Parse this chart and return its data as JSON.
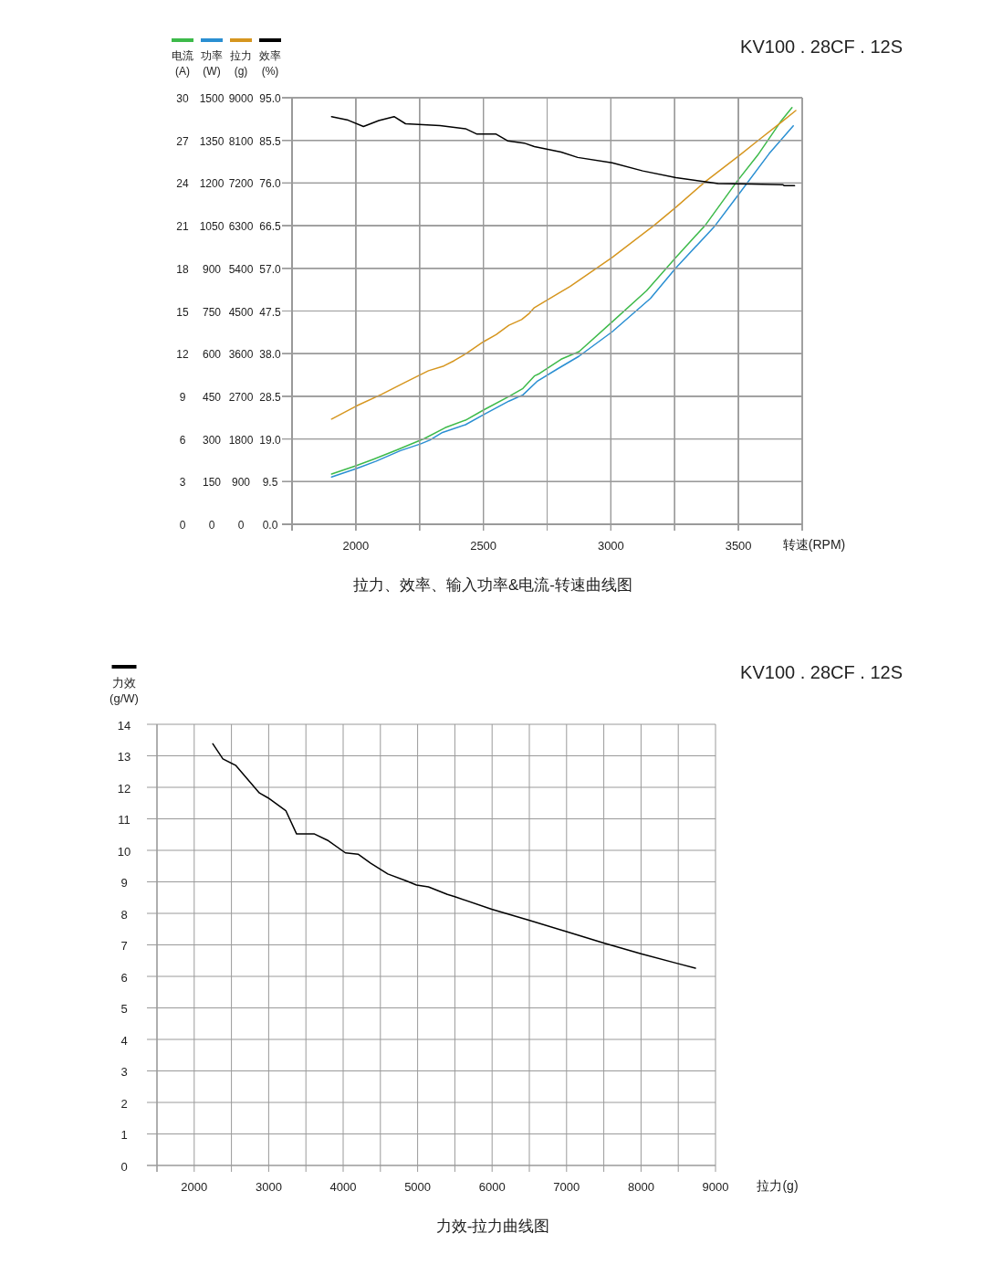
{
  "chart_data": [
    {
      "type": "line",
      "title": "拉力、效率、输入功率&电流-转速曲线图",
      "annotations": [
        "KV100 . 28CF . 12S"
      ],
      "xlabel": "转速(RPM)",
      "xlim": [
        1750,
        3750
      ],
      "xticks": [
        {
          "value": 1750,
          "label": null
        },
        2000,
        {
          "value": 2250,
          "label": null
        },
        2500,
        {
          "value": 2750,
          "label": null
        },
        3000,
        {
          "value": 3250,
          "label": null
        },
        3500,
        {
          "value": 3750,
          "label": null
        }
      ],
      "ylabel": "(A)",
      "ylim": [
        0,
        30
      ],
      "yticks": [
        0,
        3,
        6,
        9,
        12,
        15,
        18,
        21,
        24,
        27,
        30
      ],
      "grid": true,
      "legend": "top left",
      "series": [
        {
          "name": "电流",
          "color": "#3dba4a",
          "x": [
            1905,
            2000,
            2070,
            2160,
            2270,
            2350,
            2430,
            2500,
            2600,
            2655,
            2700,
            2720,
            2805,
            2875,
            3005,
            3140,
            3255,
            3370,
            3495,
            3575,
            3665,
            3710
          ],
          "values": [
            3.53,
            4.11,
            4.58,
            5.22,
            6.04,
            6.79,
            7.32,
            8.03,
            8.99,
            9.55,
            10.43,
            10.6,
            11.61,
            12.14,
            14.24,
            16.43,
            18.78,
            21.03,
            24.13,
            25.95,
            28.31,
            29.31
          ]
        }
      ]
    },
    {
      "type": "line",
      "tick_labels": "y",
      "xlim": [
        1750,
        3750
      ],
      "xticks": [
        {
          "value": 1750,
          "label": null
        },
        2000,
        {
          "value": 2250,
          "label": null
        },
        2500,
        {
          "value": 2750,
          "label": null
        },
        3000,
        {
          "value": 3250,
          "label": null
        },
        3500,
        {
          "value": 3750,
          "label": null
        }
      ],
      "ylabel": "(W)",
      "ylim": [
        0,
        1500
      ],
      "yticks": [
        0,
        150,
        300,
        450,
        600,
        750,
        900,
        1050,
        1200,
        1350,
        1500
      ],
      "grid": true,
      "legend": "top left",
      "series": [
        {
          "name": "功率",
          "color": "#2a8fd2",
          "x": [
            1905,
            2000,
            2080,
            2175,
            2255,
            2290,
            2340,
            2430,
            2500,
            2600,
            2655,
            2710,
            2790,
            2875,
            3005,
            3155,
            3255,
            3405,
            3495,
            3620,
            3715
          ],
          "values": [
            166,
            195,
            222,
            259,
            283,
            296,
            323,
            350,
            385,
            433,
            455,
            502,
            546,
            591,
            677,
            794,
            902,
            1046,
            1153,
            1303,
            1401
          ]
        }
      ]
    },
    {
      "type": "line",
      "tick_labels": "y",
      "xlim": [
        1750,
        3750
      ],
      "xticks": [
        {
          "value": 1750,
          "label": null
        },
        2000,
        {
          "value": 2250,
          "label": null
        },
        2500,
        {
          "value": 2750,
          "label": null
        },
        3000,
        {
          "value": 3250,
          "label": null
        },
        3500,
        {
          "value": 3750,
          "label": null
        }
      ],
      "ylabel": "(g)",
      "ylim": [
        0,
        9000
      ],
      "yticks": [
        0,
        900,
        1800,
        2700,
        3600,
        4500,
        5400,
        6300,
        7200,
        8100,
        9000
      ],
      "grid": true,
      "legend": "top left",
      "series": [
        {
          "name": "拉力",
          "color": "#d6961f",
          "x": [
            1905,
            2000,
            2100,
            2195,
            2285,
            2345,
            2385,
            2435,
            2500,
            2550,
            2600,
            2650,
            2680,
            2700,
            2790,
            2840,
            3005,
            3170,
            3255,
            3370,
            3505,
            3575,
            3670,
            3725
          ],
          "values": [
            2220,
            2490,
            2740,
            3000,
            3240,
            3340,
            3450,
            3610,
            3850,
            4000,
            4200,
            4320,
            4450,
            4570,
            4860,
            5020,
            5630,
            6310,
            6690,
            7230,
            7790,
            8090,
            8490,
            8730
          ]
        }
      ]
    },
    {
      "type": "line",
      "tick_labels": "y",
      "xlim": [
        1750,
        3750
      ],
      "xticks": [
        {
          "value": 1750,
          "label": null
        },
        2000,
        {
          "value": 2250,
          "label": null
        },
        2500,
        {
          "value": 2750,
          "label": null
        },
        3000,
        {
          "value": 3250,
          "label": null
        },
        3500,
        {
          "value": 3750,
          "label": null
        }
      ],
      "ylabel": "(%)",
      "ylim": [
        0,
        95
      ],
      "yticks": [
        {
          "value": 0,
          "label": "0.0"
        },
        9.5,
        {
          "value": 19,
          "label": "19.0"
        },
        28.5,
        {
          "value": 38,
          "label": "38.0"
        },
        47.5,
        {
          "value": 57,
          "label": "57.0"
        },
        66.5,
        {
          "value": 76,
          "label": "76.0"
        },
        85.5,
        {
          "value": 95,
          "label": "95.0"
        }
      ],
      "grid": true,
      "legend": "top left",
      "series": [
        {
          "name": "效率",
          "color": "#000000",
          "x": [
            1905,
            1970,
            2030,
            2090,
            2150,
            2195,
            2330,
            2430,
            2475,
            2550,
            2595,
            2660,
            2700,
            2805,
            2870,
            3005,
            3125,
            3255,
            3370,
            3420,
            3550,
            3675,
            3680,
            3720
          ],
          "values": [
            90.8,
            90.0,
            88.6,
            89.9,
            90.8,
            89.2,
            88.8,
            88.1,
            86.9,
            86.9,
            85.4,
            84.9,
            84.1,
            82.9,
            81.7,
            80.5,
            78.7,
            77.2,
            76.3,
            75.9,
            75.8,
            75.6,
            75.4,
            75.4
          ]
        }
      ]
    },
    {
      "type": "line",
      "title": "力效-拉力曲线图",
      "annotations": [
        "KV100 . 28CF . 12S"
      ],
      "xlabel": "拉力(g)",
      "xlim": [
        1500,
        9000
      ],
      "xticks": [
        {
          "value": 1500,
          "label": null
        },
        2000,
        {
          "value": 2500,
          "label": null
        },
        3000,
        {
          "value": 3500,
          "label": null
        },
        4000,
        {
          "value": 4500,
          "label": null
        },
        5000,
        {
          "value": 5500,
          "label": null
        },
        6000,
        {
          "value": 6500,
          "label": null
        },
        7000,
        {
          "value": 7500,
          "label": null
        },
        8000,
        {
          "value": 8500,
          "label": null
        },
        9000
      ],
      "ylabel": "(g/W)",
      "ylim": [
        0,
        14
      ],
      "yticks": [
        0,
        1,
        2,
        3,
        4,
        5,
        6,
        7,
        8,
        9,
        10,
        11,
        12,
        13,
        14
      ],
      "grid": true,
      "legend": "top left",
      "series": [
        {
          "name": "力效",
          "color": "#000000",
          "x": [
            2250,
            2385,
            2555,
            2875,
            2995,
            3100,
            3230,
            3375,
            3615,
            3790,
            4030,
            4200,
            4370,
            4600,
            4850,
            4985,
            5145,
            5400,
            5500,
            5995,
            6495,
            7000,
            7500,
            8000,
            8490,
            8730
          ],
          "values": [
            13.38,
            12.9,
            12.7,
            11.82,
            11.66,
            11.48,
            11.26,
            10.52,
            10.52,
            10.32,
            9.92,
            9.88,
            9.59,
            9.25,
            9.03,
            8.9,
            8.84,
            8.6,
            8.53,
            8.13,
            7.78,
            7.42,
            7.06,
            6.72,
            6.41,
            6.26
          ]
        }
      ]
    }
  ]
}
